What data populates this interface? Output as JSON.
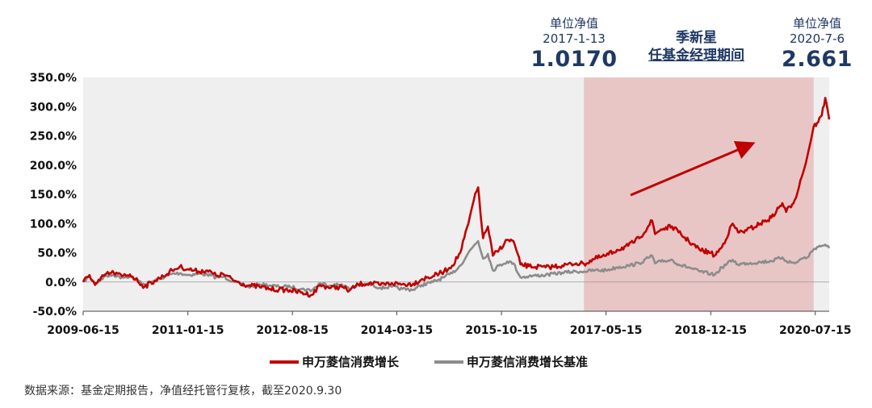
{
  "annotations": {
    "left": {
      "label": "单位净值",
      "date": "2017-1-13",
      "value": "1.0170"
    },
    "right": {
      "label": "单位净值",
      "date": "2020-7-6",
      "value": "2.661"
    },
    "manager_name": "季新星",
    "manager_period": "任基金经理期间"
  },
  "source_note": "数据来源：基金定期报告，净值经托管行复核，截至2020.9.30",
  "colors": {
    "fund": "#c00000",
    "benchmark": "#8c8c8c",
    "tenure": "#e6b8b8",
    "background": "#efefef",
    "text": "#1f3864"
  },
  "chart_data": {
    "type": "line",
    "x_format": "date",
    "x_ticks": [
      "2009-06-15",
      "2011-01-15",
      "2012-08-15",
      "2014-03-15",
      "2015-10-15",
      "2017-05-15",
      "2018-12-15",
      "2020-07-15"
    ],
    "y_ticks": [
      "350.0%",
      "300.0%",
      "250.0%",
      "200.0%",
      "150.0%",
      "100.0%",
      "50.0%",
      "0.0%",
      "-50.0%"
    ],
    "ylim": [
      -50,
      350
    ],
    "xlim": [
      "2009-06-15",
      "2020-09-30"
    ],
    "y_unit": "%",
    "grid": false,
    "legend_position": "bottom",
    "highlight": {
      "start": "2017-01-13",
      "end": "2020-07-06"
    },
    "series": [
      {
        "name": "申万菱信消费增长",
        "color": "#c00000",
        "points": [
          [
            "2009-06-15",
            0
          ],
          [
            "2009-07-20",
            12
          ],
          [
            "2009-08-20",
            -5
          ],
          [
            "2009-09-15",
            3
          ],
          [
            "2009-10-15",
            13
          ],
          [
            "2009-12-01",
            16
          ],
          [
            "2010-01-15",
            10
          ],
          [
            "2010-03-01",
            13
          ],
          [
            "2010-05-20",
            -8
          ],
          [
            "2010-07-15",
            2
          ],
          [
            "2010-09-01",
            10
          ],
          [
            "2010-10-20",
            20
          ],
          [
            "2010-12-01",
            26
          ],
          [
            "2011-01-15",
            22
          ],
          [
            "2011-03-15",
            18
          ],
          [
            "2011-05-01",
            20
          ],
          [
            "2011-06-20",
            11
          ],
          [
            "2011-08-01",
            13
          ],
          [
            "2011-10-01",
            2
          ],
          [
            "2011-12-15",
            -6
          ],
          [
            "2012-02-15",
            -8
          ],
          [
            "2012-04-15",
            -12
          ],
          [
            "2012-06-01",
            -13
          ],
          [
            "2012-08-01",
            -14
          ],
          [
            "2012-10-01",
            -18
          ],
          [
            "2012-12-01",
            -22
          ],
          [
            "2013-01-15",
            -5
          ],
          [
            "2013-03-15",
            -10
          ],
          [
            "2013-05-15",
            -8
          ],
          [
            "2013-06-25",
            -15
          ],
          [
            "2013-08-15",
            -4
          ],
          [
            "2013-10-15",
            -2
          ],
          [
            "2013-12-15",
            -5
          ],
          [
            "2014-02-15",
            -2
          ],
          [
            "2014-04-15",
            -4
          ],
          [
            "2014-06-15",
            -3
          ],
          [
            "2014-08-01",
            5
          ],
          [
            "2014-10-01",
            10
          ],
          [
            "2014-12-01",
            18
          ],
          [
            "2015-01-15",
            28
          ],
          [
            "2015-03-01",
            50
          ],
          [
            "2015-04-15",
            100
          ],
          [
            "2015-05-15",
            140
          ],
          [
            "2015-06-08",
            162
          ],
          [
            "2015-07-05",
            75
          ],
          [
            "2015-08-01",
            95
          ],
          [
            "2015-08-28",
            45
          ],
          [
            "2015-10-01",
            55
          ],
          [
            "2015-11-15",
            72
          ],
          [
            "2015-12-20",
            70
          ],
          [
            "2016-01-28",
            30
          ],
          [
            "2016-03-15",
            27
          ],
          [
            "2016-06-15",
            25
          ],
          [
            "2016-09-15",
            28
          ],
          [
            "2016-12-01",
            32
          ],
          [
            "2017-01-13",
            31
          ],
          [
            "2017-03-15",
            40
          ],
          [
            "2017-05-15",
            45
          ],
          [
            "2017-07-15",
            55
          ],
          [
            "2017-09-15",
            62
          ],
          [
            "2017-11-15",
            75
          ],
          [
            "2018-01-25",
            105
          ],
          [
            "2018-02-10",
            82
          ],
          [
            "2018-03-15",
            90
          ],
          [
            "2018-05-15",
            95
          ],
          [
            "2018-06-20",
            85
          ],
          [
            "2018-08-15",
            70
          ],
          [
            "2018-10-15",
            55
          ],
          [
            "2018-12-15",
            50
          ],
          [
            "2019-01-05",
            45
          ],
          [
            "2019-02-15",
            60
          ],
          [
            "2019-04-15",
            100
          ],
          [
            "2019-05-15",
            85
          ],
          [
            "2019-07-01",
            88
          ],
          [
            "2019-09-15",
            100
          ],
          [
            "2019-11-15",
            110
          ],
          [
            "2020-01-15",
            135
          ],
          [
            "2020-02-05",
            120
          ],
          [
            "2020-03-23",
            140
          ],
          [
            "2020-05-01",
            180
          ],
          [
            "2020-06-01",
            215
          ],
          [
            "2020-07-06",
            266
          ],
          [
            "2020-07-25",
            272
          ],
          [
            "2020-08-20",
            285
          ],
          [
            "2020-09-08",
            315
          ],
          [
            "2020-09-30",
            278
          ]
        ]
      },
      {
        "name": "申万菱信消费增长基准",
        "color": "#8c8c8c",
        "points": [
          [
            "2009-06-15",
            0
          ],
          [
            "2009-07-20",
            10
          ],
          [
            "2009-08-20",
            -3
          ],
          [
            "2009-10-15",
            10
          ],
          [
            "2009-12-01",
            12
          ],
          [
            "2010-01-15",
            8
          ],
          [
            "2010-03-01",
            10
          ],
          [
            "2010-05-20",
            -4
          ],
          [
            "2010-07-15",
            2
          ],
          [
            "2010-10-20",
            14
          ],
          [
            "2010-12-01",
            15
          ],
          [
            "2011-01-15",
            12
          ],
          [
            "2011-03-15",
            14
          ],
          [
            "2011-05-01",
            13
          ],
          [
            "2011-06-20",
            8
          ],
          [
            "2011-08-01",
            9
          ],
          [
            "2011-10-01",
            0
          ],
          [
            "2011-12-15",
            -8
          ],
          [
            "2012-02-15",
            -4
          ],
          [
            "2012-04-15",
            -6
          ],
          [
            "2012-06-01",
            -8
          ],
          [
            "2012-08-01",
            -8
          ],
          [
            "2012-10-01",
            -12
          ],
          [
            "2012-12-01",
            -14
          ],
          [
            "2013-01-15",
            -2
          ],
          [
            "2013-03-15",
            -6
          ],
          [
            "2013-05-15",
            -4
          ],
          [
            "2013-06-25",
            -12
          ],
          [
            "2013-08-15",
            -5
          ],
          [
            "2013-10-15",
            -4
          ],
          [
            "2013-12-15",
            -10
          ],
          [
            "2014-02-15",
            -8
          ],
          [
            "2014-04-15",
            -12
          ],
          [
            "2014-06-15",
            -13
          ],
          [
            "2014-08-01",
            -5
          ],
          [
            "2014-10-01",
            0
          ],
          [
            "2014-12-01",
            8
          ],
          [
            "2015-01-15",
            15
          ],
          [
            "2015-03-01",
            28
          ],
          [
            "2015-04-15",
            50
          ],
          [
            "2015-05-15",
            62
          ],
          [
            "2015-06-08",
            70
          ],
          [
            "2015-07-05",
            40
          ],
          [
            "2015-08-01",
            48
          ],
          [
            "2015-08-28",
            20
          ],
          [
            "2015-10-01",
            28
          ],
          [
            "2015-11-15",
            35
          ],
          [
            "2015-12-20",
            32
          ],
          [
            "2016-01-28",
            8
          ],
          [
            "2016-03-15",
            10
          ],
          [
            "2016-06-15",
            12
          ],
          [
            "2016-09-15",
            16
          ],
          [
            "2016-12-01",
            18
          ],
          [
            "2017-01-13",
            18
          ],
          [
            "2017-03-15",
            20
          ],
          [
            "2017-05-15",
            20
          ],
          [
            "2017-07-15",
            25
          ],
          [
            "2017-09-15",
            28
          ],
          [
            "2017-11-15",
            32
          ],
          [
            "2018-01-25",
            45
          ],
          [
            "2018-02-10",
            32
          ],
          [
            "2018-03-15",
            35
          ],
          [
            "2018-05-15",
            38
          ],
          [
            "2018-06-20",
            30
          ],
          [
            "2018-08-15",
            25
          ],
          [
            "2018-10-15",
            18
          ],
          [
            "2018-12-15",
            14
          ],
          [
            "2019-01-05",
            12
          ],
          [
            "2019-02-15",
            25
          ],
          [
            "2019-04-15",
            38
          ],
          [
            "2019-05-15",
            30
          ],
          [
            "2019-07-01",
            32
          ],
          [
            "2019-09-15",
            34
          ],
          [
            "2019-11-15",
            36
          ],
          [
            "2020-01-15",
            42
          ],
          [
            "2020-02-05",
            36
          ],
          [
            "2020-03-23",
            32
          ],
          [
            "2020-05-01",
            40
          ],
          [
            "2020-06-01",
            42
          ],
          [
            "2020-07-06",
            56
          ],
          [
            "2020-07-25",
            60
          ],
          [
            "2020-08-20",
            62
          ],
          [
            "2020-09-08",
            64
          ],
          [
            "2020-09-30",
            58
          ]
        ]
      }
    ]
  }
}
